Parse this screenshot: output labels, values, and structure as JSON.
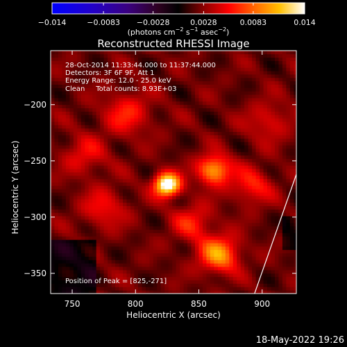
{
  "chart_data": {
    "type": "heatmap",
    "title": "Reconstructed RHESSI Image",
    "xlabel": "Heliocentric X (arcsec)",
    "ylabel": "Heliocentric Y (arcsec)",
    "xlim": [
      733,
      927
    ],
    "ylim": [
      -368,
      -152
    ],
    "x_ticks": [
      750,
      800,
      850,
      900
    ],
    "y_ticks": [
      -200,
      -250,
      -300,
      -350
    ],
    "x_tick_labels": [
      "750",
      "800",
      "850",
      "900"
    ],
    "y_tick_labels": [
      "−200",
      "−250",
      "−300",
      "−350"
    ],
    "colorbar": {
      "min": -0.014,
      "max": 0.014,
      "tick_values": [
        -0.014,
        -0.0083,
        -0.0028,
        0.0028,
        0.0083,
        0.014
      ],
      "tick_labels": [
        "−0.014",
        "−0.0083",
        "−0.0028",
        "0.0028",
        "0.0083",
        "0.014"
      ],
      "label_parts": [
        "(photons cm",
        "−2",
        " s",
        "−1",
        " asec",
        "−2",
        ")"
      ]
    },
    "annotations": [
      "28-Oct-2014 11:33:44.000 to 11:37:44.000",
      "Detectors: 3F 6F 9F, Att 1",
      "Energy Range: 12.0 - 25.0 keV",
      "Clean     Total counts: 8.93E+03"
    ],
    "peak_label": "Position of Peak = [825,-271]",
    "peak": {
      "x": 825,
      "y": -271,
      "value": 0.014
    },
    "sources": [
      {
        "x": 825,
        "y": -271,
        "value": 0.014,
        "sigma": 7
      },
      {
        "x": 862,
        "y": -258,
        "value": 0.0085,
        "sigma": 9
      },
      {
        "x": 866,
        "y": -333,
        "value": 0.0078,
        "sigma": 11
      },
      {
        "x": 793,
        "y": -208,
        "value": 0.004,
        "sigma": 13
      },
      {
        "x": 775,
        "y": -292,
        "value": 0.0035,
        "sigma": 12
      },
      {
        "x": 845,
        "y": -305,
        "value": 0.004,
        "sigma": 11
      },
      {
        "x": 892,
        "y": -272,
        "value": 0.0042,
        "sigma": 11
      },
      {
        "x": 905,
        "y": -215,
        "value": 0.003,
        "sigma": 12
      },
      {
        "x": 760,
        "y": -245,
        "value": 0.0032,
        "sigma": 12
      }
    ],
    "limb_line": [
      [
        894,
        -368
      ],
      [
        927,
        -262
      ]
    ],
    "colors": {
      "background": "#000000",
      "text": "#ffffff"
    }
  },
  "footer": {
    "timestamp": "18-May-2022 19:26"
  }
}
